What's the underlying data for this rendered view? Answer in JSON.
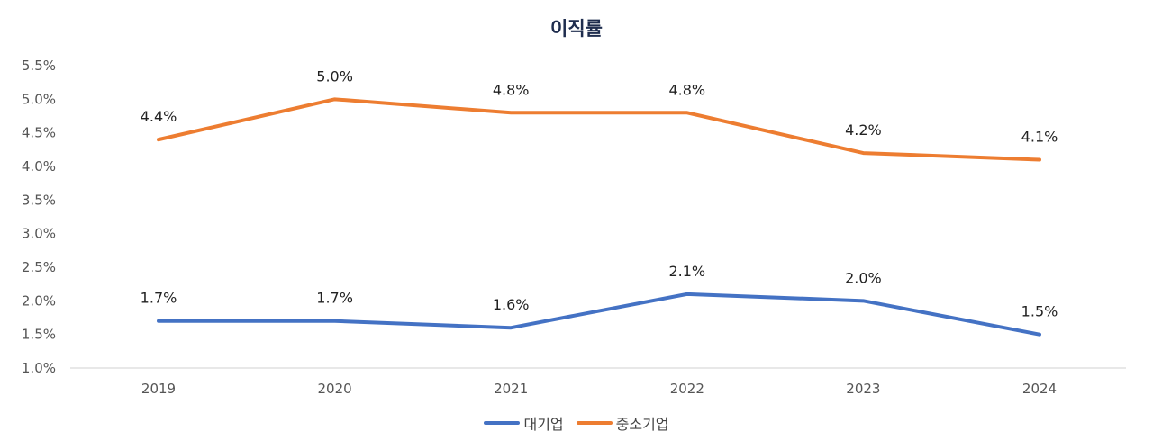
{
  "chart_data": {
    "type": "line",
    "title": "이직률",
    "xlabel": "",
    "ylabel": "",
    "x": [
      "2019",
      "2020",
      "2021",
      "2022",
      "2023",
      "2024"
    ],
    "ylim": [
      1.0,
      5.5
    ],
    "yticks": [
      "1.0%",
      "1.5%",
      "2.0%",
      "2.5%",
      "3.0%",
      "3.5%",
      "4.0%",
      "4.5%",
      "5.0%",
      "5.5%"
    ],
    "ytick_values": [
      1.0,
      1.5,
      2.0,
      2.5,
      3.0,
      3.5,
      4.0,
      4.5,
      5.0,
      5.5
    ],
    "grid": false,
    "legend_position": "bottom",
    "series": [
      {
        "name": "대기업",
        "color": "#4472c4",
        "values": [
          1.7,
          1.7,
          1.6,
          2.1,
          2.0,
          1.5
        ],
        "labels": [
          "1.7%",
          "1.7%",
          "1.6%",
          "2.1%",
          "2.0%",
          "1.5%"
        ]
      },
      {
        "name": "중소기업",
        "color": "#ed7d31",
        "values": [
          4.4,
          5.0,
          4.8,
          4.8,
          4.2,
          4.1
        ],
        "labels": [
          "4.4%",
          "5.0%",
          "4.8%",
          "4.8%",
          "4.2%",
          "4.1%"
        ]
      }
    ]
  }
}
